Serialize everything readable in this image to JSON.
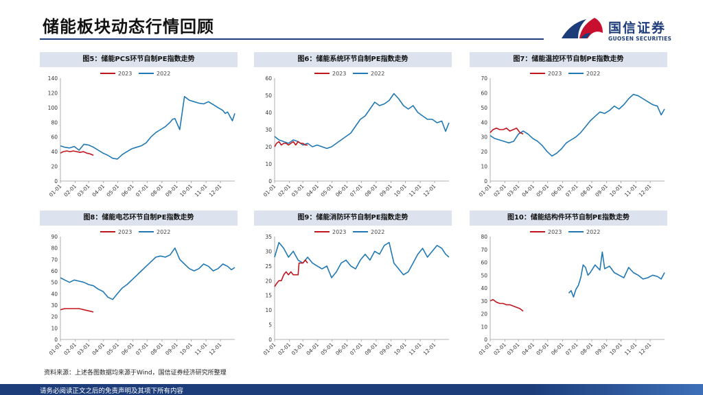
{
  "header": {
    "title": "储能板块动态行情回顾",
    "logo_cn": "国信证券",
    "logo_en": "GUOSEN SECURITIES",
    "logo_colors": {
      "red": "#c8102e",
      "blue": "#1c3d7a"
    }
  },
  "source_note": "资料来源：上述各图数据均来源于Wind，国信证券经济研究所整理",
  "footer": {
    "disclaimer": "请务必阅读正文之后的免责声明及其项下所有内容"
  },
  "colors": {
    "series_2023": "#c0141c",
    "series_2022": "#1f77b4",
    "header_band": "#dde3ee",
    "brand_blue": "#1c3d7a"
  },
  "chart_data": [
    {
      "type": "line",
      "title": "图5：储能PCS环节自制PE指数走势",
      "ylim": [
        0,
        140
      ],
      "yticks": [
        0,
        20,
        40,
        60,
        80,
        100,
        120,
        140
      ],
      "xticks": [
        "01-01",
        "02-01",
        "03-01",
        "04-01",
        "05-01",
        "06-01",
        "07-01",
        "08-01",
        "09-01",
        "10-01",
        "11-01",
        "12-01"
      ],
      "series": [
        {
          "name": "2023",
          "x": [
            1,
            7,
            14,
            21,
            28,
            35,
            42,
            49,
            56,
            63,
            70
          ],
          "values": [
            38,
            40,
            41,
            40,
            41,
            40,
            39,
            40,
            38,
            37,
            35
          ]
        },
        {
          "name": "2022",
          "x": [
            1,
            10,
            20,
            30,
            40,
            50,
            60,
            70,
            80,
            90,
            100,
            110,
            120,
            130,
            140,
            150,
            160,
            170,
            180,
            190,
            200,
            210,
            220,
            230,
            235,
            240,
            250,
            260,
            270,
            280,
            290,
            300,
            310,
            320,
            330,
            340,
            345,
            350,
            355,
            360,
            365
          ],
          "values": [
            48,
            46,
            45,
            47,
            42,
            50,
            49,
            46,
            42,
            38,
            35,
            31,
            30,
            36,
            40,
            44,
            46,
            48,
            52,
            60,
            66,
            70,
            74,
            80,
            84,
            85,
            70,
            115,
            110,
            108,
            106,
            105,
            108,
            104,
            100,
            96,
            92,
            94,
            88,
            82,
            92
          ]
        }
      ]
    },
    {
      "type": "line",
      "title": "图6：储能系统环节自制PE指数走势",
      "ylim": [
        0,
        60
      ],
      "yticks": [
        0,
        10,
        20,
        30,
        40,
        50,
        60
      ],
      "xticks": [
        "01-01",
        "02-01",
        "03-01",
        "04-01",
        "05-01",
        "06-01",
        "07-01",
        "08-01",
        "09-01",
        "10-01",
        "11-01",
        "12-01"
      ],
      "series": [
        {
          "name": "2023",
          "x": [
            1,
            5,
            10,
            15,
            20,
            25,
            30,
            35,
            40,
            45,
            50,
            55,
            60,
            65,
            70
          ],
          "values": [
            20,
            22,
            23,
            21,
            22,
            22,
            21,
            22,
            23,
            21,
            23,
            22,
            22,
            21,
            21
          ]
        },
        {
          "name": "2022",
          "x": [
            1,
            10,
            20,
            30,
            40,
            50,
            60,
            70,
            80,
            90,
            100,
            110,
            120,
            130,
            140,
            150,
            160,
            170,
            180,
            190,
            200,
            210,
            220,
            230,
            240,
            250,
            260,
            270,
            280,
            290,
            300,
            310,
            320,
            330,
            340,
            350,
            358,
            365
          ],
          "values": [
            26,
            24,
            23,
            22,
            24,
            23,
            21,
            22,
            20,
            21,
            20,
            19,
            20,
            22,
            24,
            26,
            28,
            32,
            36,
            38,
            42,
            46,
            44,
            45,
            47,
            51,
            48,
            44,
            42,
            44,
            40,
            38,
            36,
            36,
            34,
            35,
            29,
            34
          ]
        }
      ]
    },
    {
      "type": "line",
      "title": "图7：储能温控环节自制PE指数走势",
      "ylim": [
        0,
        70
      ],
      "yticks": [
        0,
        10,
        20,
        30,
        40,
        50,
        60,
        70
      ],
      "xticks": [
        "01-01",
        "02-01",
        "03-01",
        "04-01",
        "05-01",
        "06-01",
        "07-01",
        "08-01",
        "09-01",
        "10-01",
        "11-01",
        "12-01"
      ],
      "series": [
        {
          "name": "2023",
          "x": [
            1,
            7,
            14,
            21,
            28,
            35,
            42,
            49,
            56,
            63,
            70
          ],
          "values": [
            33,
            35,
            36,
            35,
            35,
            36,
            34,
            35,
            36,
            33,
            32
          ]
        },
        {
          "name": "2022",
          "x": [
            1,
            10,
            20,
            30,
            40,
            50,
            60,
            70,
            80,
            90,
            100,
            110,
            120,
            130,
            140,
            150,
            160,
            170,
            180,
            190,
            200,
            210,
            220,
            230,
            240,
            250,
            260,
            270,
            280,
            290,
            300,
            310,
            320,
            330,
            340,
            350,
            358,
            365
          ],
          "values": [
            31,
            29,
            28,
            27,
            26,
            27,
            32,
            34,
            32,
            29,
            27,
            24,
            20,
            17,
            19,
            22,
            26,
            28,
            30,
            33,
            37,
            41,
            44,
            47,
            46,
            48,
            51,
            49,
            52,
            56,
            59,
            58,
            56,
            54,
            52,
            51,
            45,
            49
          ]
        }
      ]
    },
    {
      "type": "line",
      "title": "图8：储能电芯环节自制PE指数走势",
      "ylim": [
        0,
        90
      ],
      "yticks": [
        0,
        10,
        20,
        30,
        40,
        50,
        60,
        70,
        80,
        90
      ],
      "xticks": [
        "01-01",
        "02-01",
        "03-01",
        "04-01",
        "05-01",
        "06-01",
        "07-01",
        "08-01",
        "09-01",
        "10-01",
        "11-01",
        "12-01"
      ],
      "series": [
        {
          "name": "2023",
          "x": [
            1,
            10,
            20,
            30,
            40,
            50,
            60,
            70
          ],
          "values": [
            26,
            27,
            27,
            27,
            27,
            26,
            25,
            24
          ]
        },
        {
          "name": "2022",
          "x": [
            1,
            10,
            20,
            30,
            40,
            50,
            60,
            70,
            80,
            90,
            100,
            110,
            120,
            130,
            140,
            150,
            160,
            170,
            180,
            190,
            200,
            210,
            220,
            230,
            240,
            250,
            260,
            270,
            280,
            290,
            300,
            310,
            320,
            330,
            340,
            350,
            358,
            365
          ],
          "values": [
            54,
            52,
            50,
            52,
            51,
            50,
            48,
            47,
            44,
            42,
            37,
            35,
            40,
            45,
            48,
            52,
            56,
            60,
            64,
            68,
            72,
            73,
            72,
            74,
            80,
            70,
            66,
            62,
            60,
            62,
            66,
            64,
            60,
            62,
            66,
            64,
            61,
            63
          ]
        }
      ]
    },
    {
      "type": "line",
      "title": "图9：储能消防环节自制PE指数走势",
      "ylim": [
        0,
        35
      ],
      "yticks": [
        0,
        5,
        10,
        15,
        20,
        25,
        30,
        35
      ],
      "xticks": [
        "01-01",
        "02-01",
        "03-01",
        "04-01",
        "05-01",
        "06-01",
        "07-01",
        "08-01",
        "09-01",
        "10-01",
        "11-01",
        "12-01"
      ],
      "series": [
        {
          "name": "2023",
          "x": [
            1,
            5,
            10,
            15,
            20,
            25,
            30,
            35,
            40,
            45,
            50,
            52,
            55,
            60,
            65,
            70
          ],
          "values": [
            18,
            19,
            20,
            20,
            22,
            23,
            22,
            23,
            22,
            22,
            22,
            26,
            26,
            26,
            27,
            26
          ]
        },
        {
          "name": "2022",
          "x": [
            1,
            10,
            20,
            30,
            40,
            50,
            60,
            70,
            80,
            90,
            100,
            110,
            120,
            130,
            140,
            150,
            160,
            170,
            180,
            190,
            200,
            210,
            220,
            230,
            240,
            250,
            260,
            270,
            280,
            290,
            300,
            310,
            320,
            330,
            340,
            350,
            358,
            365
          ],
          "values": [
            28,
            33,
            31,
            28,
            30,
            27,
            26,
            28,
            26,
            25,
            24,
            25,
            21,
            23,
            26,
            27,
            25,
            24,
            27,
            29,
            27,
            30,
            29,
            32,
            33,
            26,
            24,
            22,
            23,
            26,
            29,
            31,
            28,
            30,
            32,
            31,
            29,
            28
          ]
        }
      ]
    },
    {
      "type": "line",
      "title": "图10：储能结构件环节自制PE指数走势",
      "ylim": [
        0,
        80
      ],
      "yticks": [
        0,
        10,
        20,
        30,
        40,
        50,
        60,
        70,
        80
      ],
      "xticks": [
        "01-01",
        "02-01",
        "03-01",
        "04-01",
        "05-01",
        "06-01",
        "07-01",
        "08-01",
        "09-01",
        "10-01",
        "11-01",
        "12-01"
      ],
      "series": [
        {
          "name": "2023",
          "x": [
            1,
            7,
            14,
            21,
            28,
            35,
            42,
            49,
            56,
            63,
            70
          ],
          "values": [
            30,
            31,
            29,
            28,
            28,
            27,
            27,
            26,
            25,
            24,
            22
          ]
        },
        {
          "name": "2022",
          "x": [
            165,
            170,
            175,
            180,
            185,
            190,
            195,
            200,
            205,
            210,
            220,
            230,
            235,
            240,
            250,
            260,
            270,
            280,
            290,
            300,
            310,
            320,
            330,
            340,
            350,
            358,
            365
          ],
          "values": [
            36,
            38,
            33,
            39,
            42,
            48,
            58,
            56,
            50,
            52,
            58,
            54,
            68,
            55,
            57,
            52,
            50,
            48,
            56,
            52,
            50,
            47,
            48,
            50,
            49,
            47,
            52
          ]
        }
      ]
    }
  ]
}
